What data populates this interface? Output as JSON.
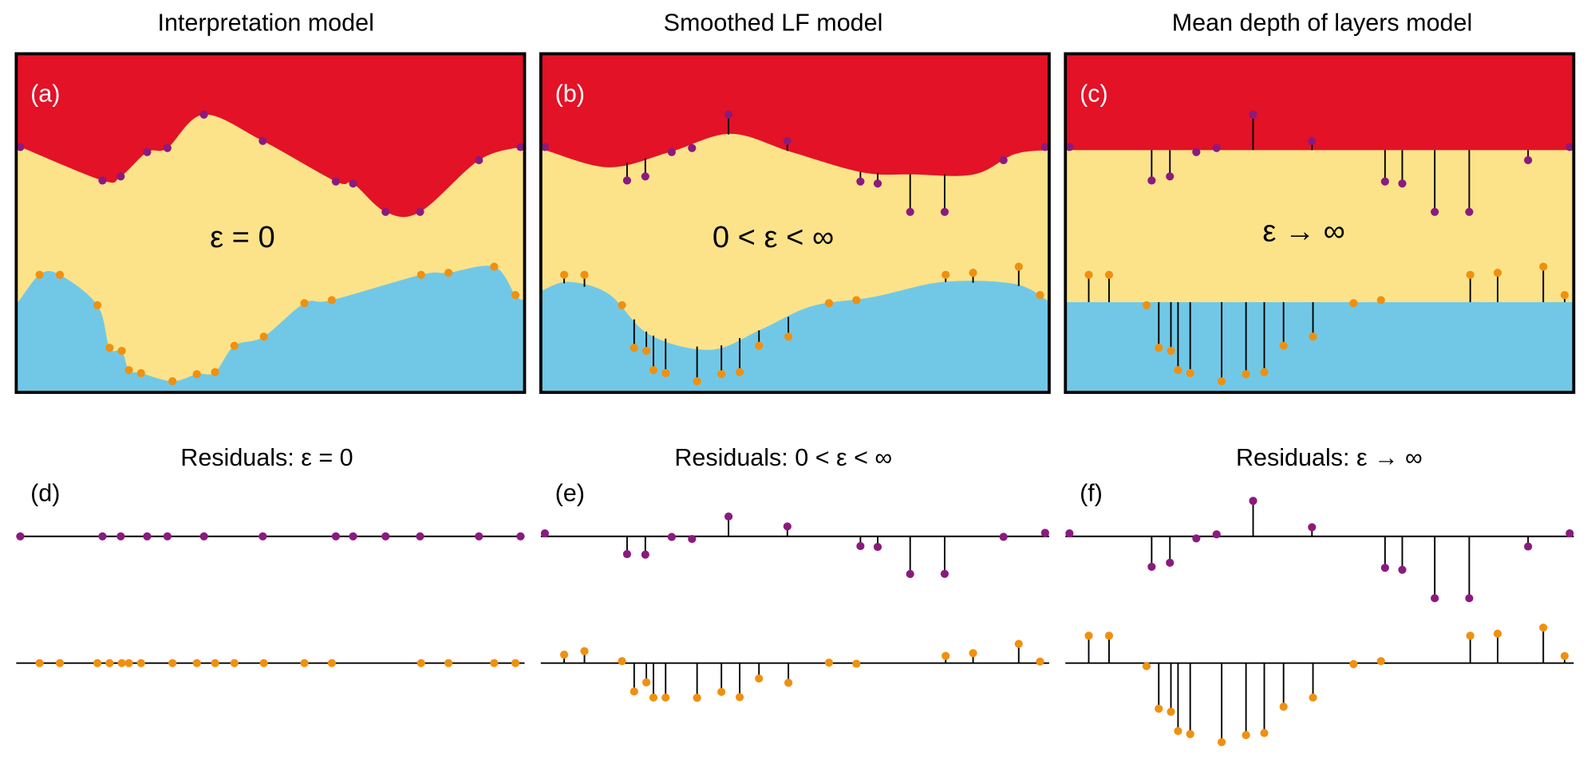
{
  "panels": [
    {
      "title": "Interpretation model",
      "label": "(a)",
      "annotation": "ε = 0"
    },
    {
      "title": "Smoothed LF model",
      "label": "(b)",
      "annotation": "0 < ε < ∞"
    },
    {
      "title": "Mean depth of layers model",
      "label": "(c)",
      "annotation": "ε → ∞"
    }
  ],
  "residual_panels": [
    {
      "title": "Residuals: ε = 0",
      "label": "(d)"
    },
    {
      "title": "Residuals: 0 < ε < ∞",
      "label": "(e)"
    },
    {
      "title": "Residuals: ε → ∞",
      "label": "(f)"
    }
  ]
}
